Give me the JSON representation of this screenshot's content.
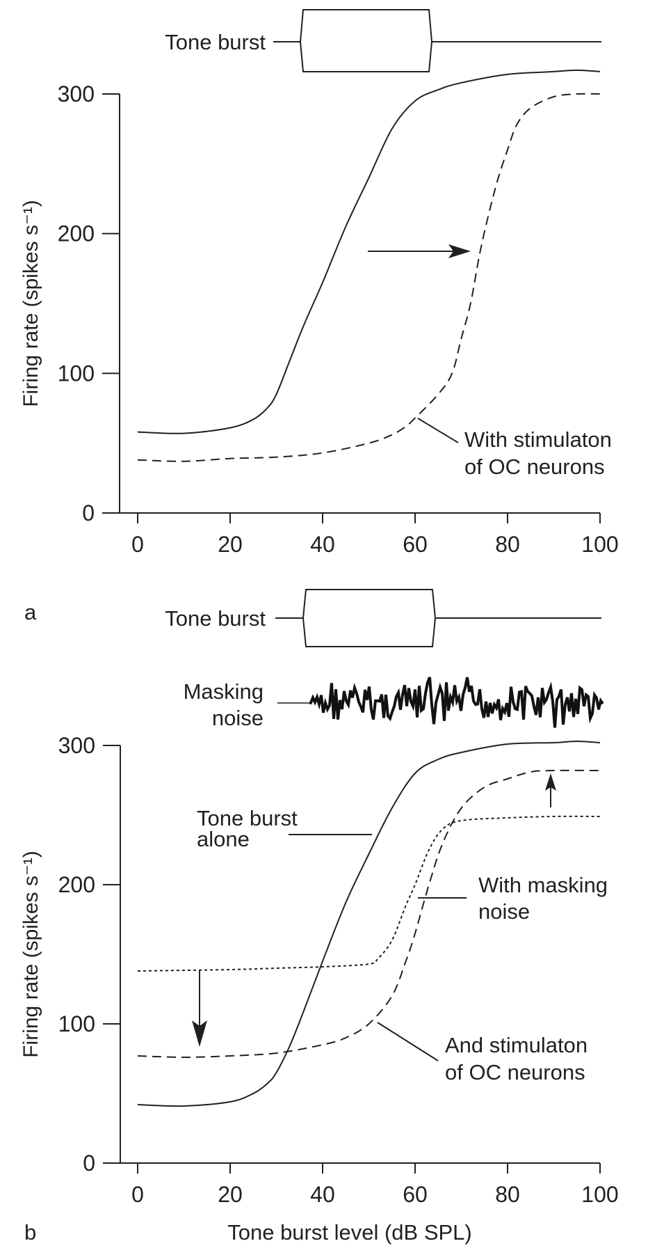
{
  "chart_data": [
    {
      "panel": "a",
      "type": "line",
      "stimulus_label": "Tone burst",
      "xlabel": "",
      "ylabel": "Firing rate (spikes s⁻¹)",
      "xlim": [
        0,
        100
      ],
      "ylim": [
        0,
        300
      ],
      "xticks": [
        "0",
        "20",
        "40",
        "60",
        "80",
        "100"
      ],
      "yticks": [
        "0",
        "100",
        "200",
        "300"
      ],
      "annotation": [
        "With stimulaton",
        "of OC neurons"
      ],
      "series": [
        {
          "name": "Tone burst",
          "style": "solid",
          "x": [
            0,
            10,
            20,
            25,
            28,
            30,
            33,
            36,
            40,
            45,
            50,
            55,
            60,
            65,
            70,
            80,
            90,
            95,
            100
          ],
          "y": [
            58,
            57,
            61,
            67,
            75,
            85,
            110,
            135,
            165,
            205,
            240,
            275,
            295,
            303,
            308,
            314,
            316,
            317,
            316
          ]
        },
        {
          "name": "With stimulaton of OC neurons",
          "style": "dashed",
          "x": [
            0,
            10,
            20,
            30,
            40,
            50,
            55,
            58,
            60,
            65,
            68,
            70,
            72,
            74,
            76,
            78,
            80,
            82,
            85,
            90,
            95,
            100
          ],
          "y": [
            38,
            37,
            39,
            40,
            43,
            50,
            56,
            62,
            68,
            85,
            100,
            125,
            150,
            186,
            215,
            240,
            260,
            278,
            290,
            298,
            300,
            300
          ]
        }
      ]
    },
    {
      "panel": "b",
      "type": "line",
      "stimulus_label": "Tone burst",
      "noise_label": [
        "Masking",
        "noise"
      ],
      "xlabel": "Tone burst level (dB SPL)",
      "ylabel": "Firing rate (spikes s⁻¹)",
      "xlim": [
        0,
        100
      ],
      "ylim": [
        0,
        300
      ],
      "xticks": [
        "0",
        "20",
        "40",
        "60",
        "80",
        "100"
      ],
      "yticks": [
        "0",
        "100",
        "200",
        "300"
      ],
      "annotations": {
        "alone": [
          "Tone burst",
          "alone"
        ],
        "masking": [
          "With masking",
          "noise"
        ],
        "oc": [
          "And stimulaton",
          "of OC neurons"
        ]
      },
      "series": [
        {
          "name": "Tone burst alone",
          "style": "solid",
          "x": [
            0,
            10,
            20,
            25,
            28,
            30,
            33,
            36,
            40,
            45,
            50,
            55,
            60,
            65,
            70,
            80,
            90,
            95,
            100
          ],
          "y": [
            42,
            41,
            44,
            50,
            57,
            65,
            85,
            110,
            145,
            187,
            222,
            255,
            280,
            290,
            295,
            301,
            302,
            303,
            302
          ]
        },
        {
          "name": "With masking noise",
          "style": "dotted",
          "x": [
            0,
            20,
            30,
            40,
            50,
            52,
            55,
            58,
            60,
            63,
            66,
            70,
            80,
            90,
            100
          ],
          "y": [
            138,
            139,
            140,
            141,
            143,
            147,
            160,
            185,
            200,
            225,
            240,
            246,
            248,
            249,
            249
          ]
        },
        {
          "name": "And stimulaton of OC neurons",
          "style": "dashed",
          "x": [
            0,
            10,
            20,
            30,
            40,
            45,
            50,
            55,
            58,
            60,
            63,
            66,
            70,
            75,
            80,
            85,
            90,
            100
          ],
          "y": [
            77,
            76,
            77,
            79,
            85,
            90,
            100,
            120,
            145,
            165,
            200,
            230,
            255,
            270,
            276,
            281,
            282,
            282
          ]
        }
      ]
    }
  ],
  "panel_labels": [
    "a",
    "b"
  ]
}
